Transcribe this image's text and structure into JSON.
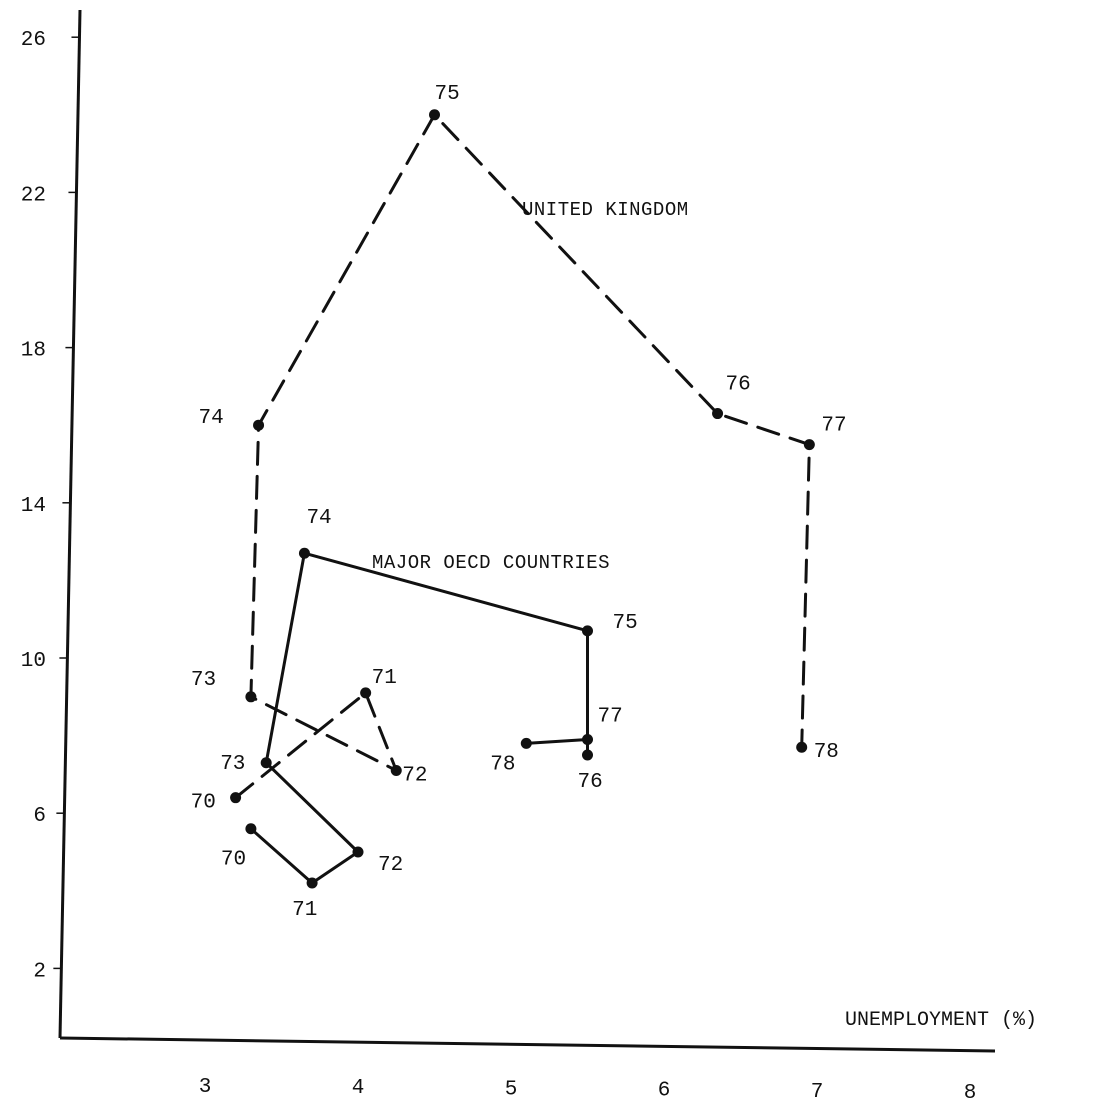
{
  "chart_data": {
    "type": "line",
    "xlabel": "UNEMPLOYMENT (%)",
    "ylabel": "",
    "xlim": [
      2.2,
      8.2
    ],
    "ylim": [
      0,
      27.5
    ],
    "x_ticks": [
      "3",
      "4",
      "5",
      "6",
      "7",
      "8"
    ],
    "y_ticks": [
      "2",
      "6",
      "10",
      "14",
      "18",
      "22",
      "26"
    ],
    "grid": false,
    "series": [
      {
        "name": "UNITED KINGDOM",
        "style": "dashed",
        "color": "#111111",
        "points": [
          {
            "label": "70",
            "x": 3.2,
            "y": 6.4
          },
          {
            "label": "71",
            "x": 4.05,
            "y": 9.1
          },
          {
            "label": "72",
            "x": 4.25,
            "y": 7.1
          },
          {
            "label": "73",
            "x": 3.3,
            "y": 9.0
          },
          {
            "label": "74",
            "x": 3.35,
            "y": 16.0
          },
          {
            "label": "75",
            "x": 4.5,
            "y": 24.0
          },
          {
            "label": "76",
            "x": 6.35,
            "y": 16.3
          },
          {
            "label": "77",
            "x": 6.95,
            "y": 15.5
          },
          {
            "label": "78",
            "x": 6.9,
            "y": 7.7
          }
        ]
      },
      {
        "name": "MAJOR OECD COUNTRIES",
        "style": "solid",
        "color": "#111111",
        "points": [
          {
            "label": "70",
            "x": 3.3,
            "y": 5.6
          },
          {
            "label": "71",
            "x": 3.7,
            "y": 4.2
          },
          {
            "label": "72",
            "x": 4.0,
            "y": 5.0
          },
          {
            "label": "73",
            "x": 3.4,
            "y": 7.3
          },
          {
            "label": "74",
            "x": 3.65,
            "y": 12.7
          },
          {
            "label": "75",
            "x": 5.5,
            "y": 10.7
          },
          {
            "label": "76",
            "x": 5.5,
            "y": 7.5
          },
          {
            "label": "77",
            "x": 5.5,
            "y": 7.9
          },
          {
            "label": "78",
            "x": 5.1,
            "y": 7.8
          }
        ]
      }
    ]
  }
}
